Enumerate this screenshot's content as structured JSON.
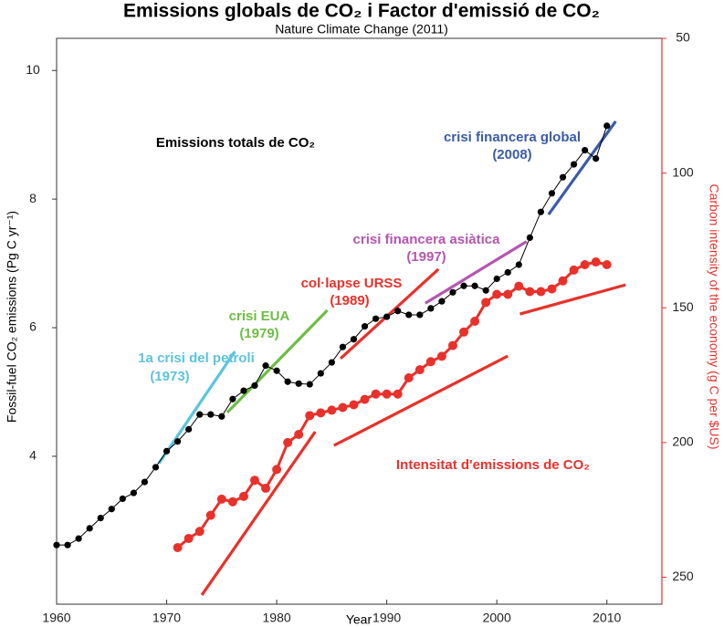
{
  "chart_data": {
    "type": "line",
    "title": "Emissions globals de CO₂ i Factor d'emissió de CO₂",
    "subtitle": "Nature Climate Change (2011)",
    "x_label": "Year",
    "y_label": "Fossil-fuel CO₂ emissions (Pg C yr⁻¹)",
    "y2_label": "Carbon intensity of the economy (g C per $US)",
    "xlim": [
      1960,
      2015
    ],
    "xticks": [
      1960,
      1970,
      1980,
      1990,
      2000,
      2010
    ],
    "ylim": [
      1.7,
      10.5
    ],
    "yticks": [
      4,
      6,
      8,
      10
    ],
    "y2lim": [
      260,
      50
    ],
    "y2ticks": [
      50,
      100,
      150,
      200,
      250
    ],
    "y2_color": "#e8312a",
    "series": [
      {
        "name": "Emissions totals de CO₂",
        "color": "#000000",
        "x": [
          1960,
          1961,
          1962,
          1963,
          1964,
          1965,
          1966,
          1967,
          1968,
          1969,
          1970,
          1971,
          1972,
          1973,
          1974,
          1975,
          1976,
          1977,
          1978,
          1979,
          1980,
          1981,
          1982,
          1983,
          1984,
          1985,
          1986,
          1987,
          1988,
          1989,
          1990,
          1991,
          1992,
          1993,
          1994,
          1995,
          1996,
          1997,
          1998,
          1999,
          2000,
          2001,
          2002,
          2003,
          2004,
          2005,
          2006,
          2007,
          2008,
          2009,
          2010
        ],
        "values": [
          2.62,
          2.62,
          2.72,
          2.88,
          3.04,
          3.18,
          3.34,
          3.43,
          3.6,
          3.83,
          4.08,
          4.23,
          4.42,
          4.65,
          4.65,
          4.62,
          4.89,
          5.02,
          5.1,
          5.41,
          5.33,
          5.16,
          5.13,
          5.12,
          5.29,
          5.46,
          5.7,
          5.82,
          6.02,
          6.14,
          6.17,
          6.26,
          6.2,
          6.2,
          6.3,
          6.41,
          6.55,
          6.65,
          6.65,
          6.58,
          6.76,
          6.86,
          6.98,
          7.4,
          7.8,
          8.09,
          8.34,
          8.54,
          8.76,
          8.63,
          9.14
        ]
      },
      {
        "name": "Intensitat d'emissions de CO₂",
        "color": "#e8312a",
        "axis": "y2",
        "x": [
          1971,
          1972,
          1973,
          1974,
          1975,
          1976,
          1977,
          1978,
          1979,
          1980,
          1981,
          1982,
          1983,
          1984,
          1985,
          1986,
          1987,
          1988,
          1989,
          1990,
          1991,
          1992,
          1993,
          1994,
          1995,
          1996,
          1997,
          1998,
          1999,
          2000,
          2001,
          2002,
          2003,
          2004,
          2005,
          2006,
          2007,
          2008,
          2009,
          2010
        ],
        "values": [
          239,
          235.6,
          233,
          227,
          221,
          222,
          220,
          214,
          217,
          210,
          200,
          197,
          190,
          189,
          188,
          187,
          186,
          184,
          182,
          182,
          182,
          176,
          173,
          170,
          168,
          164,
          159,
          155,
          148,
          145,
          145,
          142,
          144,
          144,
          143,
          140,
          136,
          134,
          133,
          134
        ]
      }
    ],
    "trend_lines": [
      {
        "color": "#5bc4de",
        "x1": 1969.3,
        "y1": 3.89,
        "x2": 1976.2,
        "y2": 5.63
      },
      {
        "color": "#6cbd45",
        "x1": 1975.5,
        "y1": 4.68,
        "x2": 1984.6,
        "y2": 6.27
      },
      {
        "color": "#e8312a",
        "x1": 1985.8,
        "y1": 5.52,
        "x2": 1994.7,
        "y2": 6.91
      },
      {
        "color": "#b556b0",
        "x1": 1993.5,
        "y1": 6.38,
        "x2": 2002.7,
        "y2": 7.34
      },
      {
        "color": "#3a5ba9",
        "x1": 2004.7,
        "y1": 7.76,
        "x2": 2010.8,
        "y2": 9.21
      },
      {
        "color": "#e8312a",
        "axis": "y2",
        "x1": 1973.2,
        "y1": 256.6,
        "x2": 1983.5,
        "y2": 196
      },
      {
        "color": "#e8312a",
        "axis": "y2",
        "x1": 1985.2,
        "y1": 201.1,
        "x2": 2001,
        "y2": 167.9
      },
      {
        "color": "#e8312a",
        "axis": "y2",
        "x1": 2002.1,
        "y1": 152.3,
        "x2": 2011.7,
        "y2": 141.5
      }
    ],
    "annotations": [
      {
        "text": "1a crisi del petroli",
        "color": "#5bc4de"
      },
      {
        "text": "(1973)",
        "color": "#5bc4de"
      },
      {
        "text": "crisi EUA",
        "color": "#6cbd45"
      },
      {
        "text": "(1979)",
        "color": "#6cbd45"
      },
      {
        "text": "col·lapse URSS",
        "color": "#e8312a"
      },
      {
        "text": "(1989)",
        "color": "#e8312a"
      },
      {
        "text": "crisi financera asiàtica",
        "color": "#b556b0"
      },
      {
        "text": "(1997)",
        "color": "#b556b0"
      },
      {
        "text": "crisi financera global",
        "color": "#3a5ba9"
      },
      {
        "text": "(2008)",
        "color": "#3a5ba9"
      }
    ]
  }
}
